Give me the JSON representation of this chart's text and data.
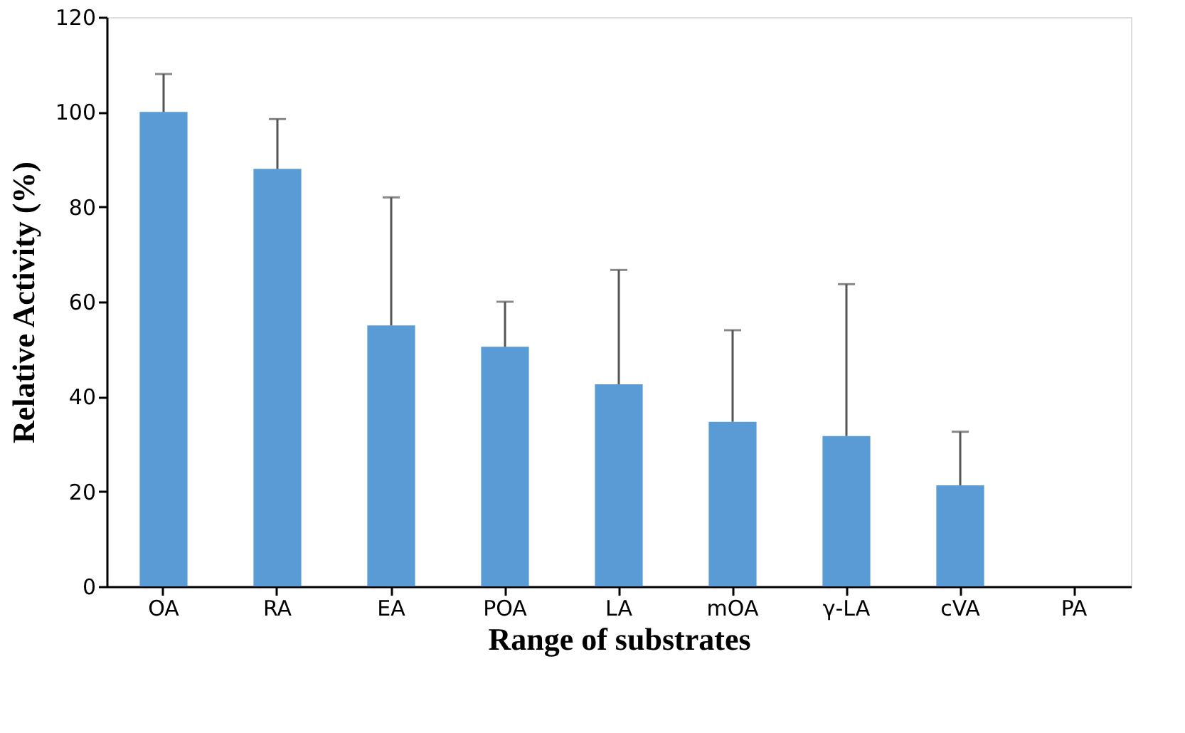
{
  "chart_data": {
    "type": "bar",
    "xlabel": "Range of substrates",
    "ylabel": "Relative Activity (%)",
    "categories": [
      "OA",
      "RA",
      "EA",
      "POA",
      "LA",
      "mOA",
      "γ-LA",
      "cVA",
      "PA"
    ],
    "values": [
      100,
      88,
      55,
      50.5,
      42.6,
      34.7,
      31.7,
      21.3,
      0
    ],
    "errors": [
      [
        100,
        108
      ],
      [
        88,
        98.5
      ],
      [
        55,
        82
      ],
      [
        50.5,
        60
      ],
      [
        42.6,
        66.7
      ],
      [
        34.7,
        54
      ],
      [
        31.7,
        63.7
      ],
      [
        21.3,
        32.6
      ],
      null
    ],
    "color": "#5b9bd5",
    "ylim": [
      0,
      120
    ],
    "yticks": [
      0,
      20,
      40,
      60,
      80,
      100,
      120
    ],
    "grid": false
  }
}
